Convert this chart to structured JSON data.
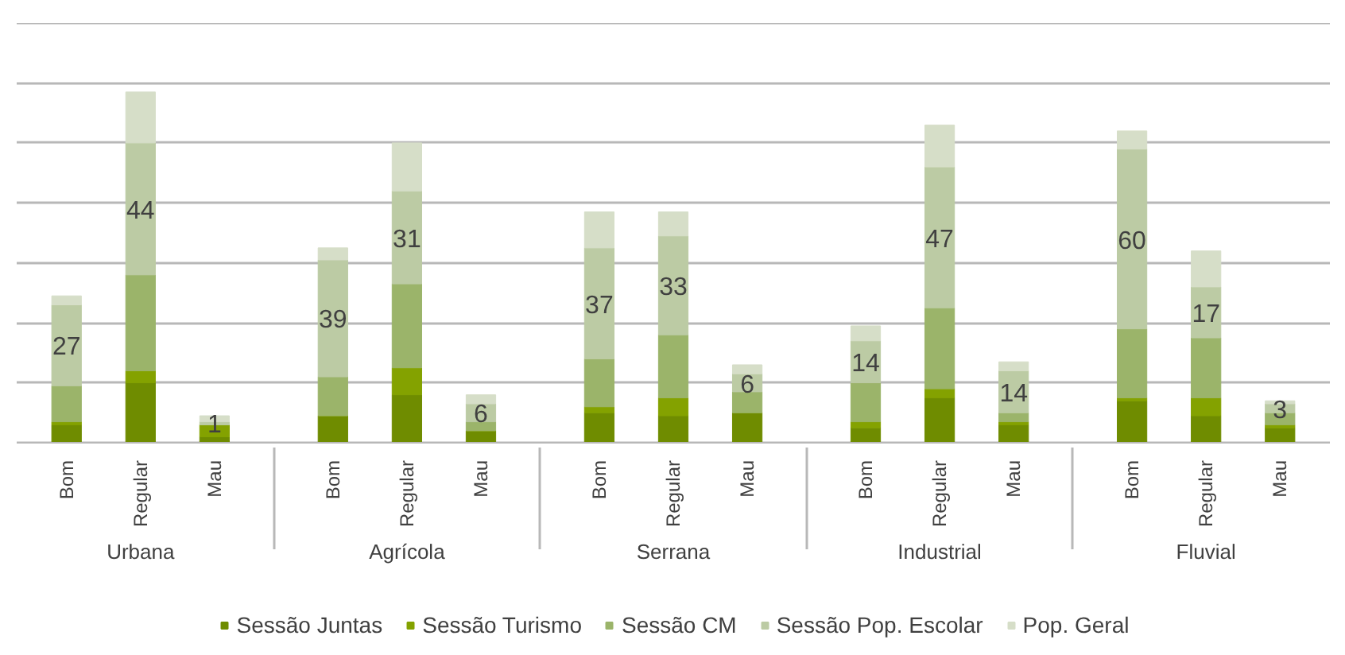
{
  "chart_data": {
    "type": "bar",
    "stacked": true,
    "categories": [
      [
        "Urbana",
        "Bom"
      ],
      [
        null,
        "Regular"
      ],
      [
        null,
        "Mau"
      ],
      [
        "Agrícola",
        "Bom"
      ],
      [
        null,
        "Regular"
      ],
      [
        null,
        "Mau"
      ],
      [
        "Serrana",
        "Bom"
      ],
      [
        null,
        "Regular"
      ],
      [
        null,
        "Mau"
      ],
      [
        "Industrial",
        "Bom"
      ],
      [
        null,
        "Regular"
      ],
      [
        null,
        "Mau"
      ],
      [
        "Fluvial",
        "Bom"
      ],
      [
        null,
        "Regular"
      ],
      [
        null,
        "Mau"
      ]
    ],
    "series": [
      {
        "name": "Sessão Juntas",
        "color": "#6f8c00",
        "values": [
          6,
          20,
          2,
          9,
          16,
          4,
          10,
          9,
          10,
          5,
          15,
          6,
          14,
          9,
          5
        ]
      },
      {
        "name": "Sessão Turismo",
        "color": "#84a200",
        "values": [
          1,
          4,
          4,
          0,
          9,
          0,
          2,
          6,
          0,
          2,
          3,
          1,
          1,
          6,
          1
        ]
      },
      {
        "name": "Sessão CM",
        "color": "#9bb46a",
        "values": [
          12,
          32,
          0,
          13,
          28,
          3,
          16,
          21,
          7,
          13,
          27,
          3,
          23,
          20,
          4
        ]
      },
      {
        "name": "Sessão Pop. Escolar",
        "color": "#bccba4",
        "values": [
          27,
          44,
          1,
          39,
          31,
          6,
          37,
          33,
          6,
          14,
          47,
          14,
          60,
          17,
          3
        ],
        "value_labels": [
          "27",
          "44",
          "1",
          "39",
          "31",
          "6",
          "37",
          "33",
          "6",
          "14",
          "47",
          "14",
          "60",
          "17",
          "3"
        ]
      },
      {
        "name": "Pop. Geral",
        "color": "#d6dec8",
        "values": [
          3,
          17,
          2,
          4,
          16,
          3,
          12,
          8,
          3,
          5,
          14,
          3,
          6,
          12,
          1
        ]
      }
    ],
    "ylim": [
      0,
      140
    ],
    "yticks": [
      {
        "value": 0,
        "label": null
      },
      {
        "value": 20,
        "label": null
      },
      {
        "value": 40,
        "label": null
      },
      {
        "value": 60,
        "label": null
      },
      {
        "value": 80,
        "label": null
      },
      {
        "value": 100,
        "label": null
      },
      {
        "value": 120,
        "label": null
      },
      {
        "value": 140,
        "label": null
      }
    ],
    "grid": "y",
    "tick_labels": "x",
    "legend": "bottom"
  }
}
